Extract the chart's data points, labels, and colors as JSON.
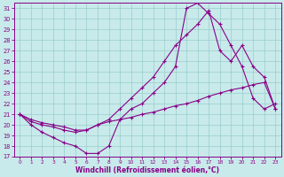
{
  "xlabel": "Windchill (Refroidissement éolien,°C)",
  "xlim": [
    -0.5,
    23.5
  ],
  "ylim": [
    17,
    31.5
  ],
  "xticks": [
    0,
    1,
    2,
    3,
    4,
    5,
    6,
    7,
    8,
    9,
    10,
    11,
    12,
    13,
    14,
    15,
    16,
    17,
    18,
    19,
    20,
    21,
    22,
    23
  ],
  "yticks": [
    17,
    18,
    19,
    20,
    21,
    22,
    23,
    24,
    25,
    26,
    27,
    28,
    29,
    30,
    31
  ],
  "bg_color": "#c8eaea",
  "line_color": "#880088",
  "grid_color": "#99cccc",
  "line1_x": [
    0,
    1,
    2,
    3,
    4,
    5,
    6,
    7,
    8,
    9,
    10,
    11,
    12,
    13,
    14,
    15,
    16,
    17,
    18,
    19,
    20,
    21,
    22,
    23
  ],
  "line1_y": [
    21.0,
    20.3,
    20.0,
    19.8,
    19.5,
    19.3,
    19.5,
    20.0,
    20.3,
    20.5,
    20.7,
    21.0,
    21.2,
    21.5,
    21.8,
    22.0,
    22.3,
    22.7,
    23.0,
    23.3,
    23.5,
    23.8,
    24.0,
    21.5
  ],
  "line2_x": [
    0,
    1,
    2,
    3,
    4,
    5,
    6,
    7,
    8,
    9,
    10,
    11,
    12,
    13,
    14,
    15,
    16,
    17,
    18,
    19,
    20,
    21,
    22,
    23
  ],
  "line2_y": [
    21.0,
    20.0,
    19.3,
    18.8,
    18.3,
    18.0,
    17.3,
    17.3,
    18.0,
    20.5,
    21.5,
    22.0,
    23.0,
    24.0,
    25.5,
    31.0,
    31.5,
    30.5,
    29.5,
    27.5,
    25.5,
    22.5,
    21.5,
    22.0
  ],
  "line3_x": [
    0,
    1,
    2,
    3,
    4,
    5,
    6,
    7,
    8,
    9,
    10,
    11,
    12,
    13,
    14,
    15,
    16,
    17,
    18,
    19,
    20,
    21,
    22,
    23
  ],
  "line3_y": [
    21.0,
    20.5,
    20.2,
    20.0,
    19.8,
    19.5,
    19.5,
    20.0,
    20.5,
    21.5,
    22.5,
    23.5,
    24.5,
    26.0,
    27.5,
    28.5,
    29.5,
    30.8,
    27.0,
    26.0,
    27.5,
    25.5,
    24.5,
    21.5
  ],
  "marker": "+",
  "markersize": 3,
  "linewidth": 0.8
}
